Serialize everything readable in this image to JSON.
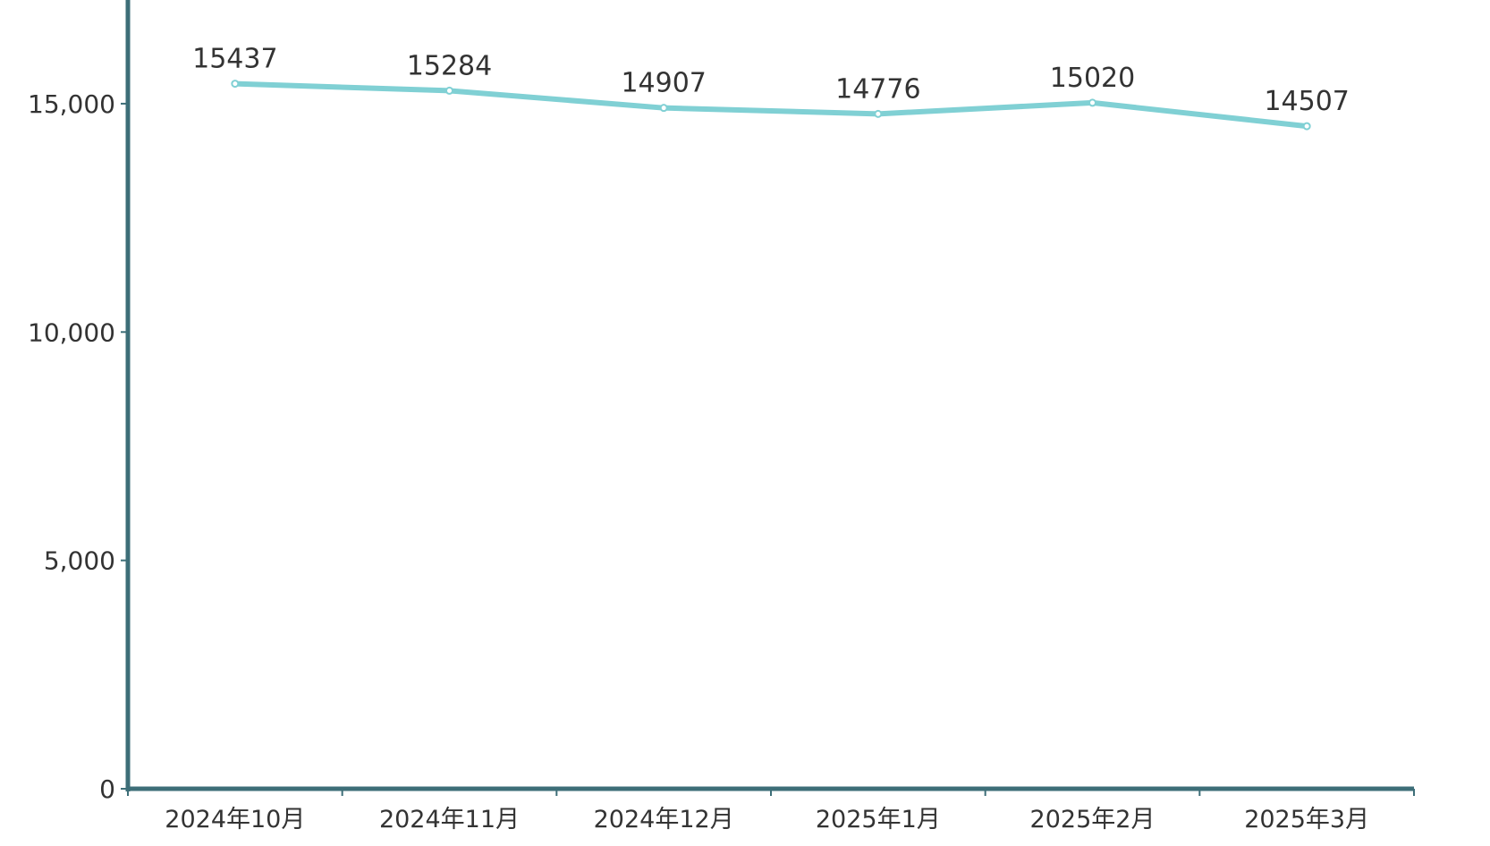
{
  "chart_data": {
    "type": "line",
    "categories": [
      "2024年10月",
      "2024年11月",
      "2024年12月",
      "2025年1月",
      "2025年2月",
      "2025年3月"
    ],
    "series": [
      {
        "values": [
          15437,
          15284,
          14907,
          14776,
          15020,
          14507
        ]
      }
    ],
    "y_ticks": [
      "0",
      "5,000",
      "10,000",
      "15,000"
    ],
    "y_tick_values": [
      0,
      5000,
      10000,
      15000
    ],
    "ylim": [
      0,
      17270
    ],
    "grid": false,
    "data_labels": true,
    "colors": {
      "line": "#80d0d4",
      "axis": "#3d6e78",
      "text": "#333333"
    }
  }
}
